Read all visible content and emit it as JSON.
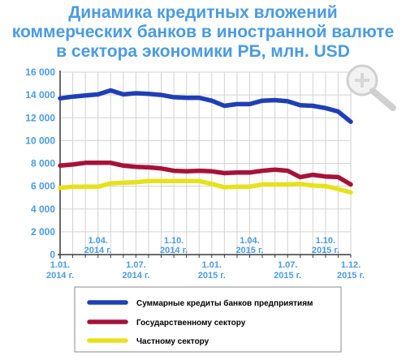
{
  "chart_data": {
    "type": "line",
    "title_lines": [
      "Динамика кредитных вложений",
      "коммерческих банков в иностранной валюте",
      "в сектора экономики РБ, млн. USD"
    ],
    "ylim": [
      0,
      16000
    ],
    "y_ticks": [
      {
        "value": 0,
        "label": "0"
      },
      {
        "value": 2000,
        "label": "2 000"
      },
      {
        "value": 4000,
        "label": "4 000"
      },
      {
        "value": 6000,
        "label": "6 000"
      },
      {
        "value": 8000,
        "label": "8 000"
      },
      {
        "value": 10000,
        "label": "10 000"
      },
      {
        "value": 12000,
        "label": "12 000"
      },
      {
        "value": 14000,
        "label": "14 000"
      },
      {
        "value": 16000,
        "label": "16 000"
      }
    ],
    "x": [
      "2014-01",
      "2014-02",
      "2014-03",
      "2014-04",
      "2014-05",
      "2014-06",
      "2014-07",
      "2014-08",
      "2014-09",
      "2014-10",
      "2014-11",
      "2014-12",
      "2015-01",
      "2015-02",
      "2015-03",
      "2015-04",
      "2015-05",
      "2015-06",
      "2015-07",
      "2015-08",
      "2015-09",
      "2015-10",
      "2015-11",
      "2015-12"
    ],
    "x_ticks_bottom": [
      {
        "index": 0,
        "line1": "1.01.",
        "line2": "2014 г."
      },
      {
        "index": 6,
        "line1": "1.07.",
        "line2": "2014 г."
      },
      {
        "index": 12,
        "line1": "1.01.",
        "line2": "2015 г."
      },
      {
        "index": 18,
        "line1": "1.07.",
        "line2": "2015 г."
      },
      {
        "index": 23,
        "line1": "1.12.",
        "line2": "2015 г."
      }
    ],
    "x_ticks_top": [
      {
        "index": 3,
        "line1": "1.04.",
        "line2": "2014 г."
      },
      {
        "index": 9,
        "line1": "1.10.",
        "line2": "2014 г."
      },
      {
        "index": 15,
        "line1": "1.04.",
        "line2": "2015 г."
      },
      {
        "index": 21,
        "line1": "1.10.",
        "line2": "2015 г."
      }
    ],
    "grid": true,
    "legend_position": "bottom",
    "series": [
      {
        "name": "Суммарные кредиты банков предприятиям",
        "color": "#1f3fb5",
        "values": [
          13700,
          13850,
          13950,
          14050,
          14400,
          14050,
          14150,
          14100,
          14000,
          13800,
          13750,
          13750,
          13500,
          13050,
          13200,
          13200,
          13500,
          13550,
          13450,
          13100,
          13050,
          12850,
          12550,
          11650
        ]
      },
      {
        "name": "Государственному сектору",
        "color": "#a5123a",
        "values": [
          7800,
          7900,
          8050,
          8050,
          8050,
          7800,
          7700,
          7650,
          7550,
          7350,
          7300,
          7350,
          7300,
          7150,
          7200,
          7200,
          7350,
          7450,
          7350,
          6800,
          7000,
          6850,
          6800,
          6150
        ]
      },
      {
        "name": "Частному сектору",
        "color": "#e6e21a",
        "values": [
          5850,
          5950,
          5950,
          5950,
          6250,
          6300,
          6350,
          6450,
          6450,
          6450,
          6450,
          6450,
          6200,
          5900,
          5950,
          5950,
          6150,
          6150,
          6150,
          6200,
          6050,
          6000,
          5750,
          5450
        ]
      }
    ]
  },
  "zoom_icon": "magnifier-plus-icon"
}
